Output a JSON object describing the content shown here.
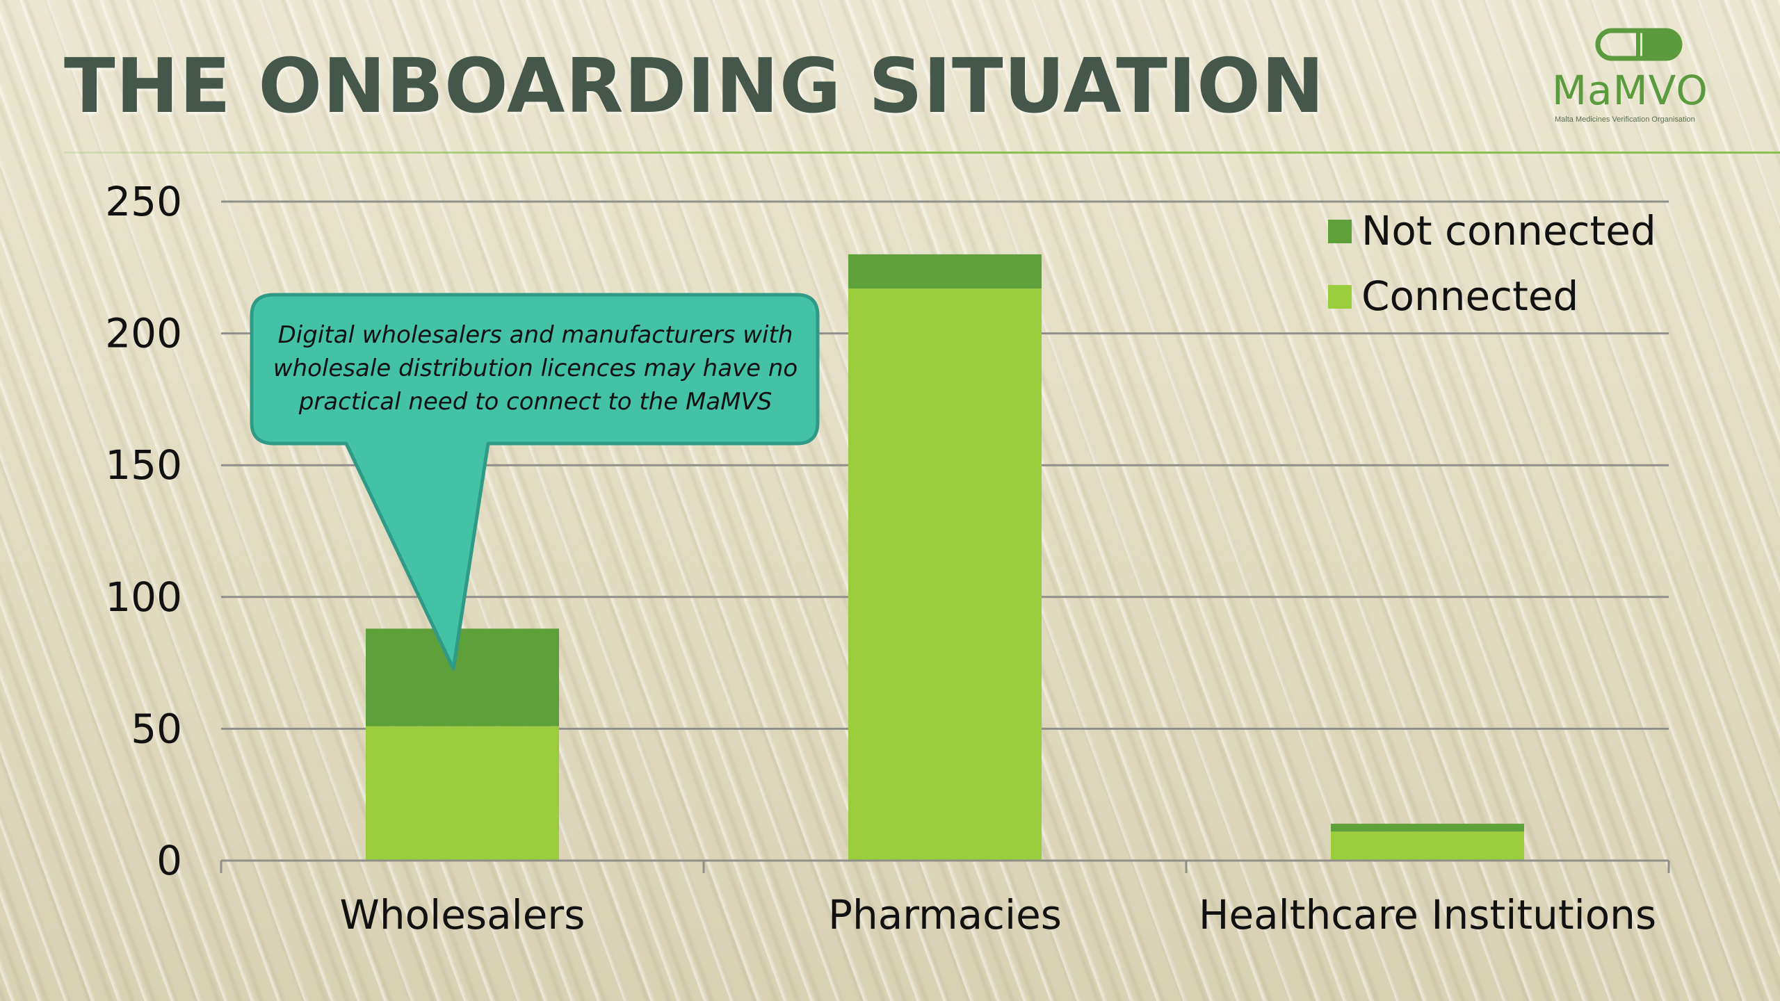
{
  "slide": {
    "title": "THE ONBOARDING SITUATION"
  },
  "logo": {
    "name": "MaMVO",
    "subtitle": "Malta Medicines Verification Organisation",
    "color": "#5a9b3e"
  },
  "callout": {
    "text": "Digital wholesalers and manufacturers with wholesale distribution licences may have no practical need to connect to the MaMVS",
    "color": "#44c2a6"
  },
  "chart_data": {
    "type": "bar",
    "stacked": true,
    "categories": [
      "Wholesalers",
      "Pharmacies",
      "Healthcare Institutions"
    ],
    "series": [
      {
        "name": "Connected",
        "values": [
          51,
          217,
          11
        ],
        "color": "#9acd3c"
      },
      {
        "name": "Not connected",
        "values": [
          37,
          13,
          3
        ],
        "color": "#5ea03a"
      }
    ],
    "ylim": [
      0,
      250
    ],
    "yticks": [
      0,
      50,
      100,
      150,
      200,
      250
    ],
    "grid": true,
    "legend": "top-right",
    "title": "",
    "xlabel": "",
    "ylabel": ""
  }
}
